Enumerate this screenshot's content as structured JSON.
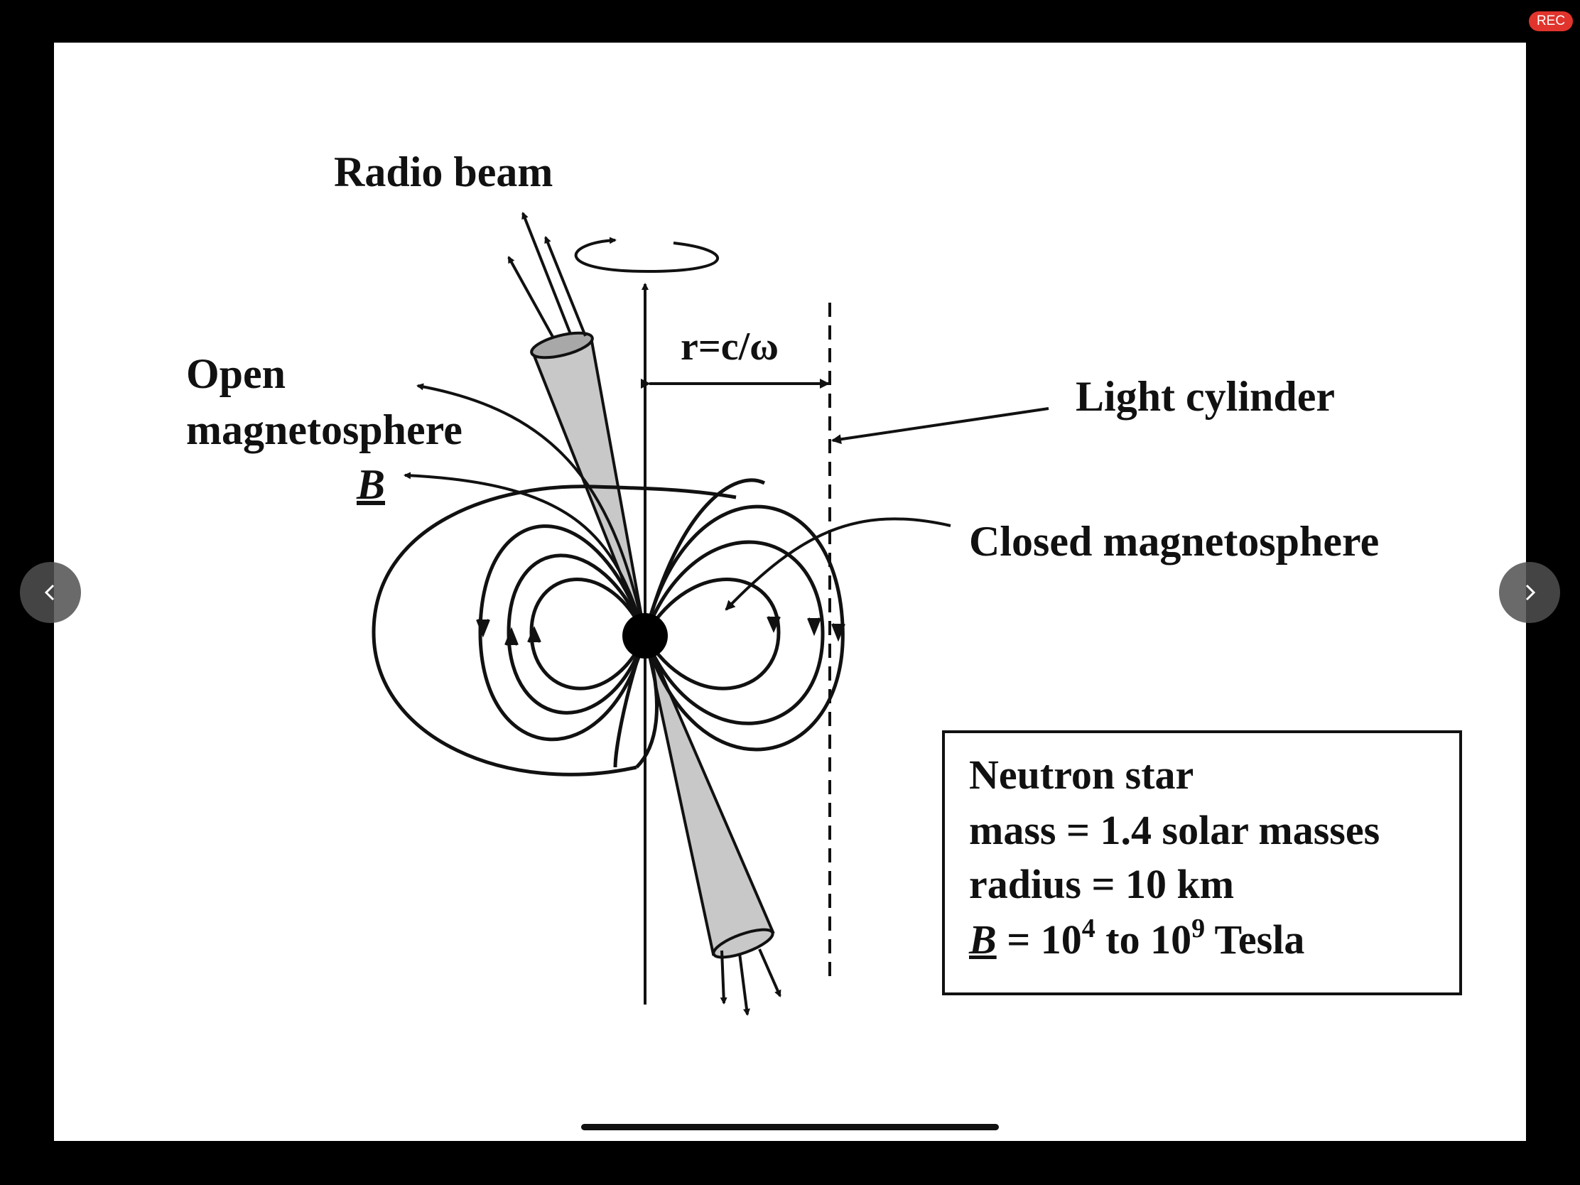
{
  "status": {
    "rec_badge": "REC"
  },
  "slide": {
    "labels": {
      "radio_beam": "Radio beam",
      "open_line1": "Open",
      "open_line2": "magnetosphere",
      "b_symbol": "B",
      "r_eq": "r=c/ω",
      "light_cylinder": "Light cylinder",
      "closed_magnetosphere": "Closed magnetosphere"
    },
    "info_box": {
      "title": "Neutron star",
      "mass": "mass = 1.4 solar masses",
      "radius": "radius = 10 km",
      "b_symbol": "B",
      "b_mid": " = 10",
      "b_exp1": "4",
      "b_to": " to 10",
      "b_exp2": "9",
      "b_unit": " Tesla"
    }
  },
  "nav": {
    "prev_icon": "chevron-left-icon",
    "next_icon": "chevron-right-icon"
  }
}
